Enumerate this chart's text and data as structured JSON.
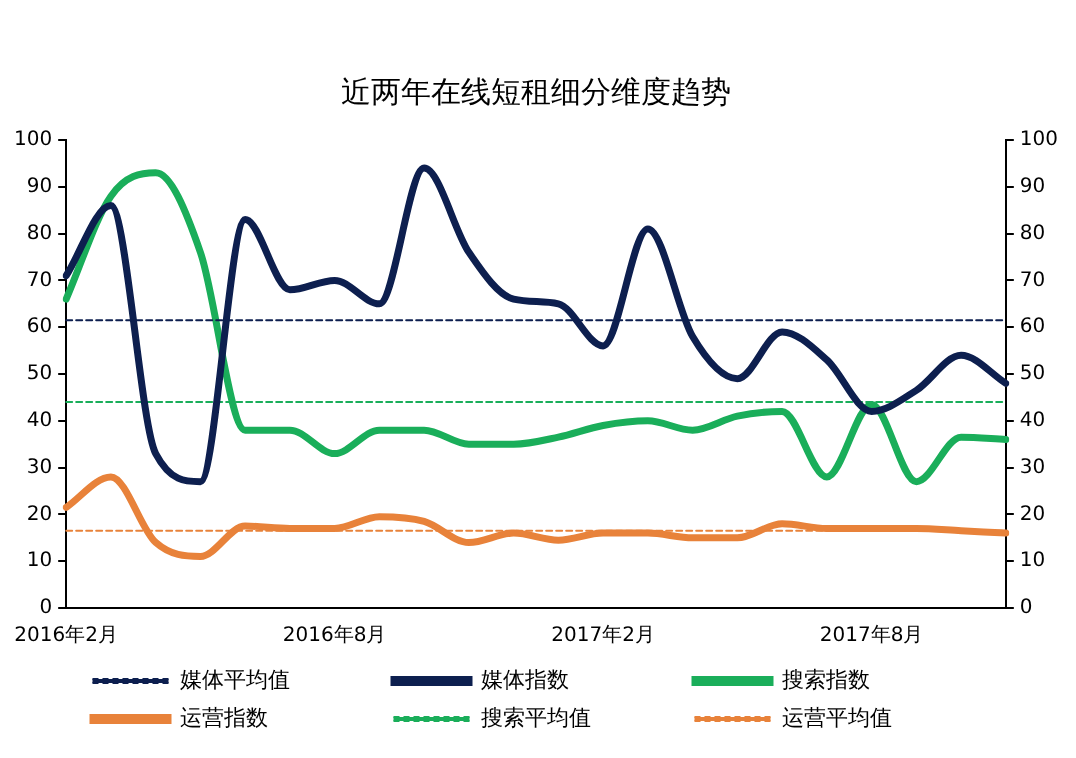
{
  "chart_data": {
    "type": "line",
    "title": "近两年在线短租细分维度趋势",
    "categories": [
      "2016年2月",
      null,
      null,
      null,
      null,
      null,
      "2016年8月",
      null,
      null,
      null,
      null,
      null,
      "2017年2月",
      null,
      null,
      null,
      null,
      null,
      "2017年8月",
      null,
      null,
      null
    ],
    "series": [
      {
        "name": "媒体平均值",
        "color": "#0d1f4f",
        "line_style": "dashed",
        "values": [
          61.5,
          61.5,
          61.5,
          61.5,
          61.5,
          61.5,
          61.5,
          61.5,
          61.5,
          61.5,
          61.5,
          61.5,
          61.5,
          61.5,
          61.5,
          61.5,
          61.5,
          61.5,
          61.5,
          61.5,
          61.5,
          61.5
        ]
      },
      {
        "name": "媒体指数",
        "color": "#0d1f4f",
        "line_style": "solid",
        "values": [
          71,
          86,
          33,
          27,
          83,
          68,
          70,
          65,
          94,
          76,
          66,
          65,
          56,
          81,
          58,
          49,
          59,
          53,
          42,
          46.5,
          54,
          48
        ]
      },
      {
        "name": "搜索指数",
        "color": "#1aae5a",
        "line_style": "solid",
        "values": [
          66,
          88,
          93,
          76,
          38,
          38,
          33,
          38,
          38,
          35,
          35,
          36.5,
          39,
          40,
          38,
          41,
          42,
          28,
          43.5,
          27,
          36.5,
          36
        ]
      },
      {
        "name": "运营指数",
        "color": "#e8823a",
        "line_style": "solid",
        "values": [
          21.5,
          28,
          14,
          11,
          17.5,
          17,
          17,
          19.5,
          18.5,
          14,
          16,
          14.5,
          16,
          16,
          15,
          15,
          18,
          17,
          17,
          17,
          16.5,
          16
        ]
      },
      {
        "name": "搜索平均值",
        "color": "#1aae5a",
        "line_style": "dashed",
        "values": [
          44,
          44,
          44,
          44,
          44,
          44,
          44,
          44,
          44,
          44,
          44,
          44,
          44,
          44,
          44,
          44,
          44,
          44,
          44,
          44,
          44,
          44
        ]
      },
      {
        "name": "运营平均值",
        "color": "#e8823a",
        "line_style": "dashed",
        "values": [
          16.5,
          16.5,
          16.5,
          16.5,
          16.5,
          16.5,
          16.5,
          16.5,
          16.5,
          16.5,
          16.5,
          16.5,
          16.5,
          16.5,
          16.5,
          16.5,
          16.5,
          16.5,
          16.5,
          16.5,
          16.5,
          16.5
        ]
      }
    ],
    "ylim": [
      0,
      100
    ],
    "yticks": [
      0,
      10,
      20,
      30,
      40,
      50,
      60,
      70,
      80,
      90,
      100
    ],
    "y2lim": [
      0,
      100
    ],
    "y2ticks": [
      0,
      10,
      20,
      30,
      40,
      50,
      60,
      70,
      80,
      90,
      100
    ],
    "grid": false,
    "legend": "bottom",
    "marker": "none"
  }
}
